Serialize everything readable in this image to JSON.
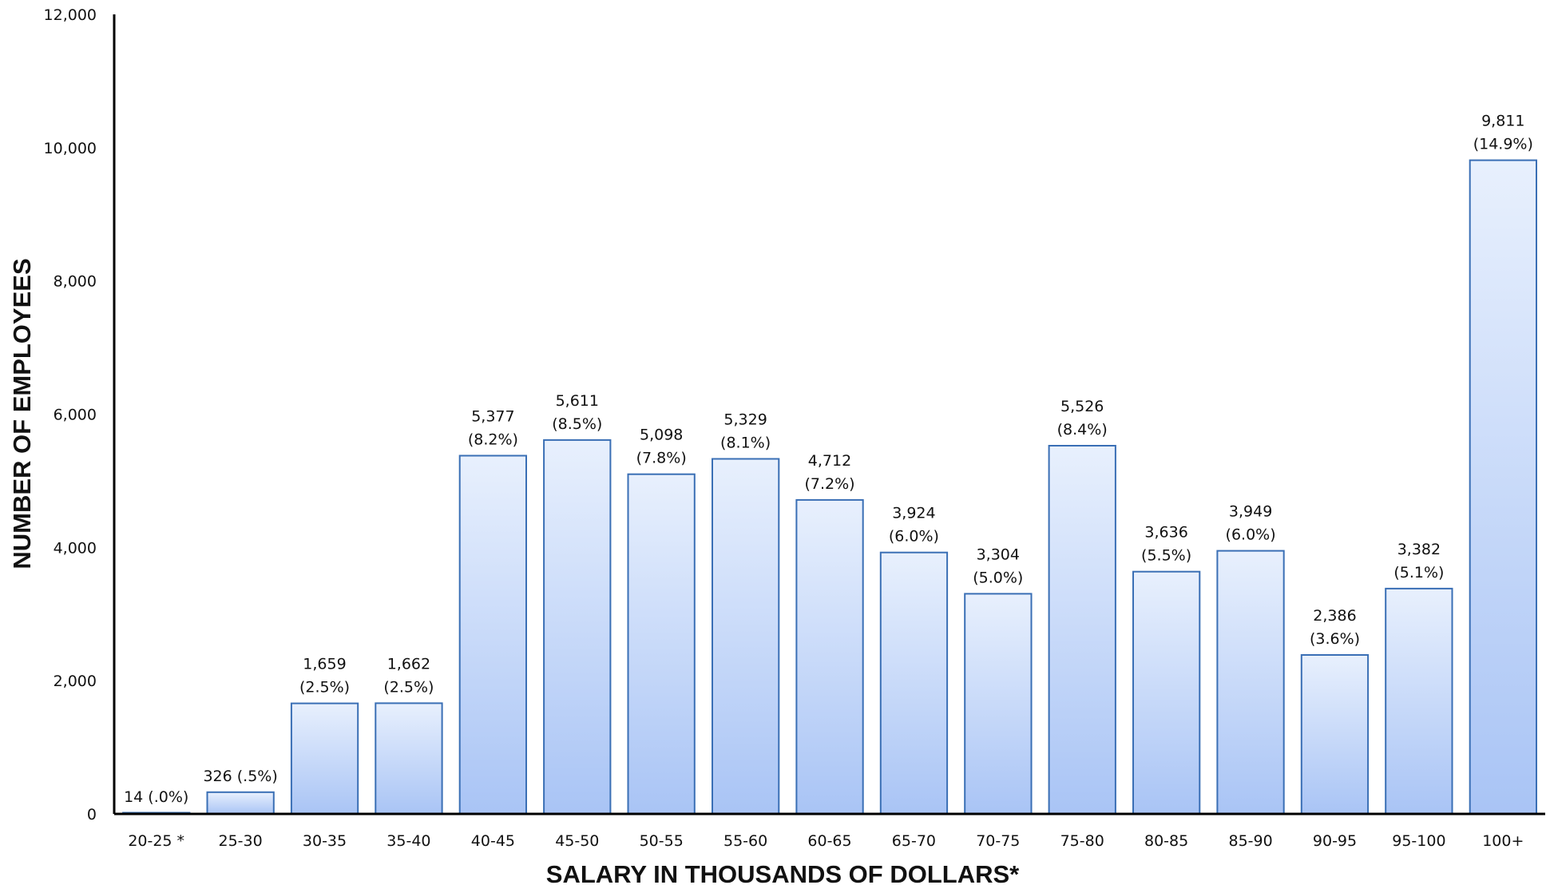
{
  "chart_data": {
    "type": "bar",
    "categories": [
      "20-25 *",
      "25-30",
      "30-35",
      "35-40",
      "40-45",
      "45-50",
      "50-55",
      "55-60",
      "60-65",
      "65-70",
      "70-75",
      "75-80",
      "80-85",
      "85-90",
      "90-95",
      "95-100",
      "100+"
    ],
    "values": [
      14,
      326,
      1659,
      1662,
      5377,
      5611,
      5098,
      5329,
      4712,
      3924,
      3304,
      5526,
      3636,
      3949,
      2386,
      3382,
      9811
    ],
    "data_labels": [
      [
        "14 (.0%)"
      ],
      [
        "326 (.5%)"
      ],
      [
        "1,659",
        "(2.5%)"
      ],
      [
        "1,662",
        "(2.5%)"
      ],
      [
        "5,377",
        "(8.2%)"
      ],
      [
        "5,611",
        "(8.5%)"
      ],
      [
        "5,098",
        "(7.8%)"
      ],
      [
        "5,329",
        "(8.1%)"
      ],
      [
        "4,712",
        "(7.2%)"
      ],
      [
        "3,924",
        "(6.0%)"
      ],
      [
        "3,304",
        "(5.0%)"
      ],
      [
        "5,526",
        "(8.4%)"
      ],
      [
        "3,636",
        "(5.5%)"
      ],
      [
        "3,949",
        "(6.0%)"
      ],
      [
        "2,386",
        "(3.6%)"
      ],
      [
        "3,382",
        "(5.1%)"
      ],
      [
        "9,811",
        "(14.9%)"
      ]
    ],
    "xlabel": "SALARY IN THOUSANDS OF DOLLARS*",
    "ylabel": "NUMBER OF EMPLOYEES",
    "ylim": [
      0,
      12000
    ],
    "yticks": [
      0,
      2000,
      4000,
      6000,
      8000,
      10000,
      12000
    ],
    "ytick_labels": [
      "0",
      "2,000",
      "4,000",
      "6,000",
      "8,000",
      "10,000",
      "12,000"
    ],
    "grid": false,
    "legend": "none",
    "colors": {
      "bar_top": "#e8f0fd",
      "bar_bottom": "#a9c4f5",
      "bar_border": "#3a6fb5",
      "axis": "#000000"
    }
  }
}
